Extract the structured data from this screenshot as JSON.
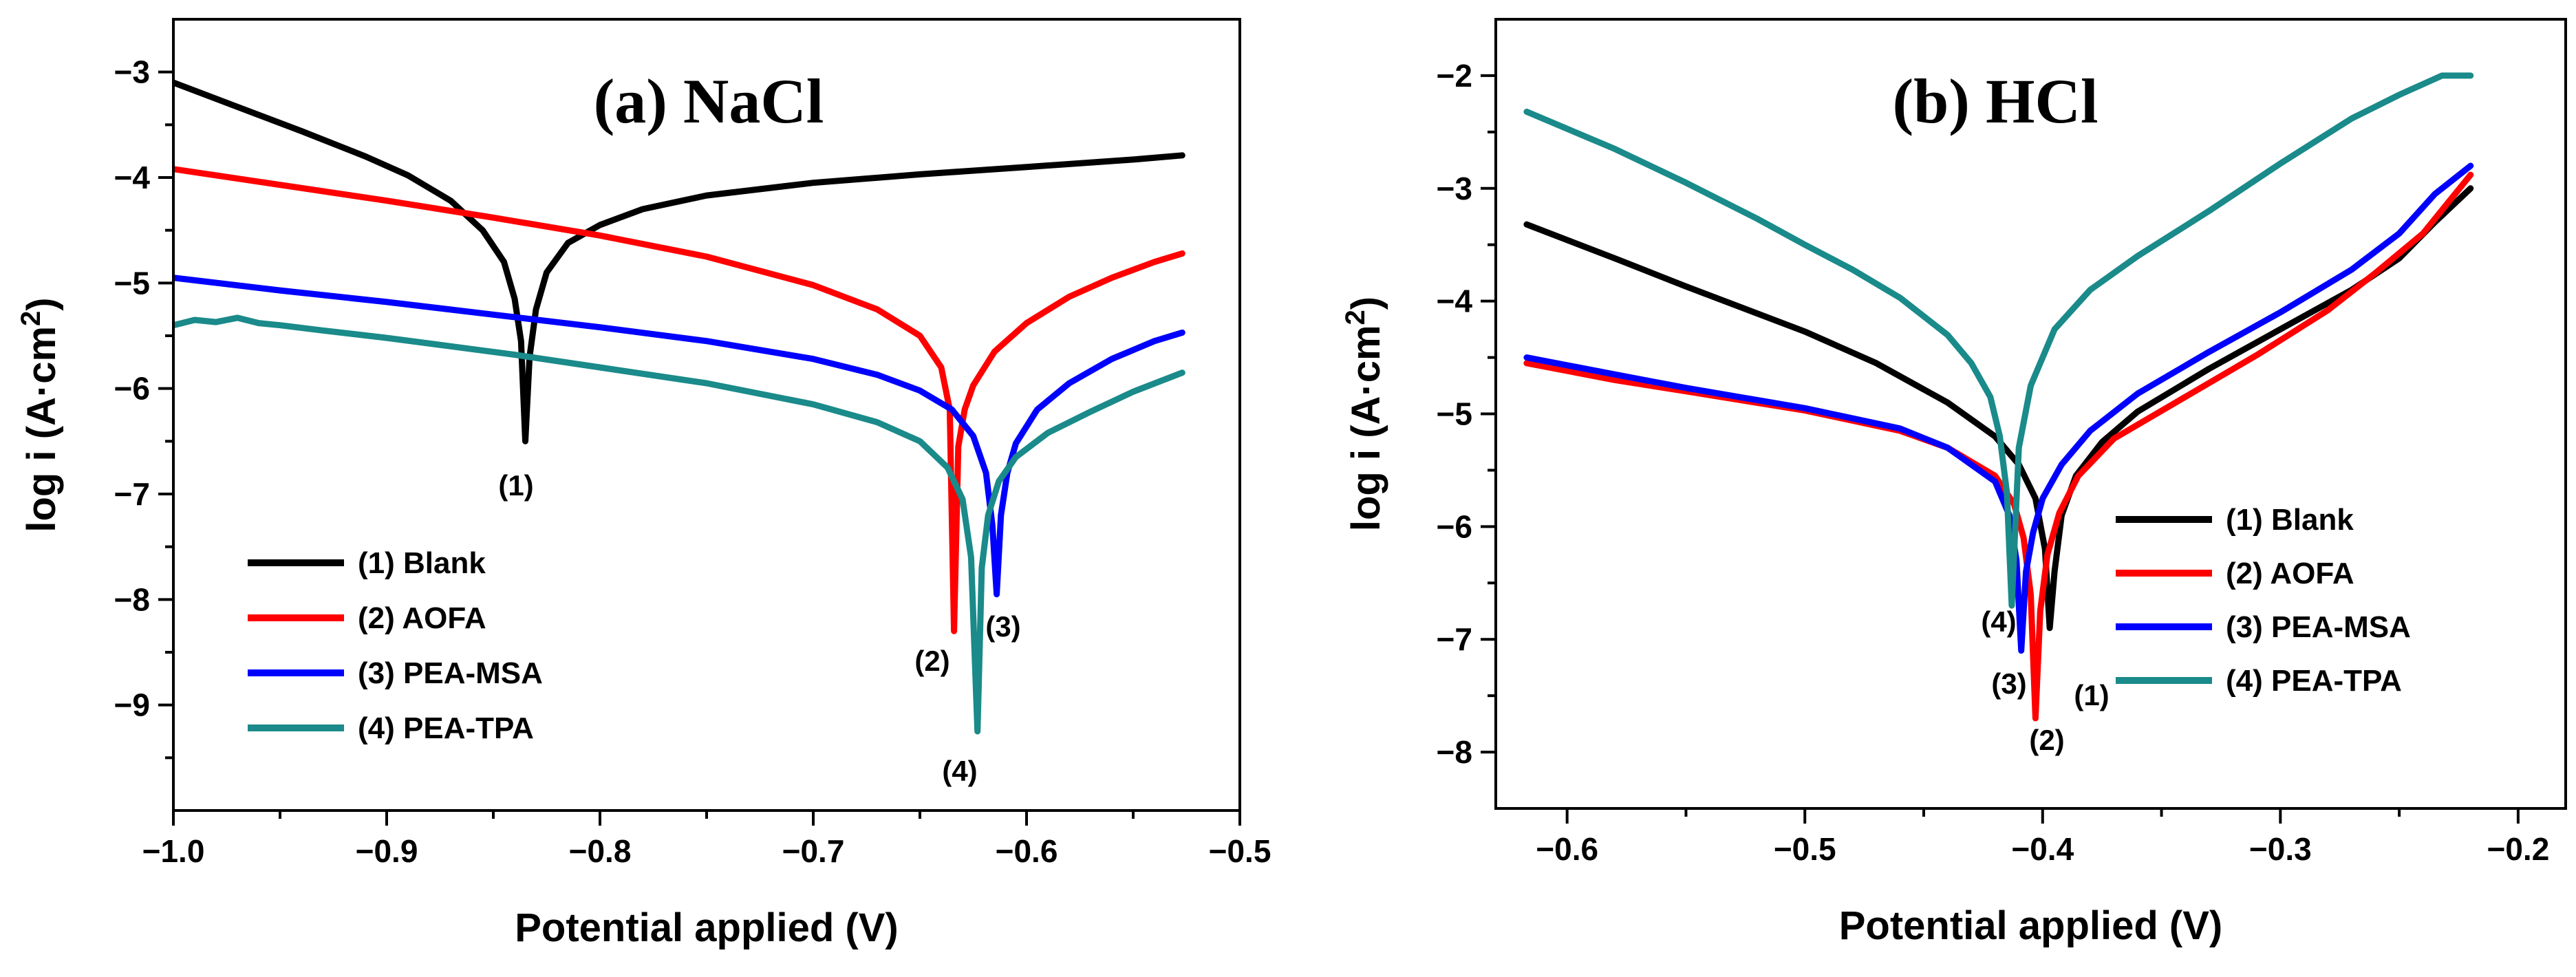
{
  "chart_data": [
    {
      "type": "line",
      "title": "(a)  NaCl",
      "xlabel": "Potential applied (V)",
      "ylabel": "log i (A·cm",
      "ylabel_sup": "2",
      "ylabel_close": ")",
      "xlim": [
        -1.0,
        -0.5
      ],
      "ylim": [
        -10.0,
        -2.5
      ],
      "xticks": [
        -1.0,
        -0.9,
        -0.8,
        -0.7,
        -0.6,
        -0.5
      ],
      "xtick_labels": [
        "−1.0",
        "−0.9",
        "−0.8",
        "−0.7",
        "−0.6",
        "−0.5"
      ],
      "yticks": [
        -9,
        -8,
        -7,
        -6,
        -5,
        -4,
        -3
      ],
      "ytick_labels": [
        "−9",
        "−8",
        "−7",
        "−6",
        "−5",
        "−4",
        "−3"
      ],
      "legend_position": "bottom-left",
      "series": [
        {
          "name": "(1) Blank",
          "color": "#000000",
          "annotation": "(1)",
          "x": [
            -1.0,
            -0.97,
            -0.94,
            -0.91,
            -0.89,
            -0.87,
            -0.855,
            -0.845,
            -0.84,
            -0.837,
            -0.835,
            -0.833,
            -0.83,
            -0.825,
            -0.815,
            -0.8,
            -0.78,
            -0.75,
            -0.7,
            -0.65,
            -0.6,
            -0.55,
            -0.527
          ],
          "y": [
            -3.1,
            -3.33,
            -3.56,
            -3.8,
            -3.98,
            -4.22,
            -4.5,
            -4.8,
            -5.15,
            -5.55,
            -6.5,
            -5.7,
            -5.25,
            -4.9,
            -4.62,
            -4.45,
            -4.3,
            -4.17,
            -4.05,
            -3.97,
            -3.9,
            -3.83,
            -3.79
          ]
        },
        {
          "name": "(2) AOFA",
          "color": "#ff0000",
          "annotation": "(2)",
          "x": [
            -1.0,
            -0.95,
            -0.9,
            -0.85,
            -0.8,
            -0.75,
            -0.7,
            -0.67,
            -0.65,
            -0.64,
            -0.636,
            -0.634,
            -0.632,
            -0.629,
            -0.625,
            -0.615,
            -0.6,
            -0.58,
            -0.56,
            -0.54,
            -0.527
          ],
          "y": [
            -3.92,
            -4.07,
            -4.22,
            -4.38,
            -4.55,
            -4.75,
            -5.02,
            -5.25,
            -5.5,
            -5.8,
            -6.2,
            -8.3,
            -6.55,
            -6.2,
            -5.97,
            -5.65,
            -5.38,
            -5.13,
            -4.95,
            -4.8,
            -4.72
          ]
        },
        {
          "name": "(3) PEA-MSA",
          "color": "#0000ff",
          "annotation": "(3)",
          "x": [
            -1.0,
            -0.95,
            -0.9,
            -0.85,
            -0.8,
            -0.75,
            -0.7,
            -0.67,
            -0.65,
            -0.635,
            -0.625,
            -0.619,
            -0.616,
            -0.614,
            -0.612,
            -0.609,
            -0.605,
            -0.595,
            -0.58,
            -0.56,
            -0.54,
            -0.527
          ],
          "y": [
            -4.95,
            -5.07,
            -5.18,
            -5.3,
            -5.42,
            -5.55,
            -5.72,
            -5.87,
            -6.02,
            -6.2,
            -6.45,
            -6.8,
            -7.3,
            -7.95,
            -7.2,
            -6.8,
            -6.52,
            -6.2,
            -5.95,
            -5.72,
            -5.55,
            -5.47
          ]
        },
        {
          "name": "(4) PEA-TPA",
          "color": "#1a8a8a",
          "annotation": "(4)",
          "x": [
            -1.0,
            -0.99,
            -0.98,
            -0.97,
            -0.96,
            -0.95,
            -0.93,
            -0.9,
            -0.87,
            -0.84,
            -0.8,
            -0.75,
            -0.7,
            -0.67,
            -0.65,
            -0.637,
            -0.63,
            -0.626,
            -0.623,
            -0.621,
            -0.618,
            -0.613,
            -0.605,
            -0.59,
            -0.57,
            -0.55,
            -0.527
          ],
          "y": [
            -5.4,
            -5.35,
            -5.37,
            -5.33,
            -5.38,
            -5.4,
            -5.45,
            -5.52,
            -5.6,
            -5.68,
            -5.8,
            -5.95,
            -6.15,
            -6.32,
            -6.5,
            -6.75,
            -7.05,
            -7.6,
            -9.25,
            -7.7,
            -7.2,
            -6.88,
            -6.65,
            -6.42,
            -6.22,
            -6.03,
            -5.85
          ]
        }
      ]
    },
    {
      "type": "line",
      "title": "(b)  HCl",
      "xlabel": "Potential applied (V)",
      "ylabel": "log i (A·cm",
      "ylabel_sup": "2",
      "ylabel_close": ")",
      "xlim": [
        -0.63,
        -0.18
      ],
      "ylim": [
        -8.5,
        -1.5
      ],
      "xticks": [
        -0.6,
        -0.5,
        -0.4,
        -0.3,
        -0.2
      ],
      "xtick_labels": [
        "−0.6",
        "−0.5",
        "−0.4",
        "−0.3",
        "−0.2"
      ],
      "yticks": [
        -8,
        -7,
        -6,
        -5,
        -4,
        -3,
        -2
      ],
      "ytick_labels": [
        "−8",
        "−7",
        "−6",
        "−5",
        "−4",
        "−3",
        "−2"
      ],
      "legend_position": "bottom-right",
      "series": [
        {
          "name": "(1) Blank",
          "color": "#000000",
          "annotation": "(1)",
          "x": [
            -0.617,
            -0.58,
            -0.55,
            -0.5,
            -0.47,
            -0.44,
            -0.42,
            -0.41,
            -0.403,
            -0.399,
            -0.397,
            -0.395,
            -0.392,
            -0.386,
            -0.375,
            -0.36,
            -0.33,
            -0.3,
            -0.27,
            -0.25,
            -0.235,
            -0.22
          ],
          "y": [
            -3.32,
            -3.62,
            -3.87,
            -4.27,
            -4.55,
            -4.9,
            -5.2,
            -5.45,
            -5.75,
            -6.2,
            -6.9,
            -6.4,
            -5.9,
            -5.55,
            -5.25,
            -4.98,
            -4.6,
            -4.25,
            -3.9,
            -3.62,
            -3.3,
            -3.0
          ]
        },
        {
          "name": "(2) AOFA",
          "color": "#ff0000",
          "annotation": "(2)",
          "x": [
            -0.617,
            -0.58,
            -0.55,
            -0.5,
            -0.46,
            -0.44,
            -0.42,
            -0.412,
            -0.408,
            -0.405,
            -0.403,
            -0.401,
            -0.398,
            -0.393,
            -0.385,
            -0.37,
            -0.34,
            -0.31,
            -0.28,
            -0.26,
            -0.24,
            -0.22
          ],
          "y": [
            -4.55,
            -4.7,
            -4.8,
            -4.97,
            -5.15,
            -5.3,
            -5.55,
            -5.8,
            -6.1,
            -6.6,
            -7.7,
            -6.75,
            -6.25,
            -5.88,
            -5.55,
            -5.22,
            -4.85,
            -4.48,
            -4.08,
            -3.75,
            -3.4,
            -2.88
          ]
        },
        {
          "name": "(3) PEA-MSA",
          "color": "#0000ff",
          "annotation": "(3)",
          "x": [
            -0.617,
            -0.58,
            -0.55,
            -0.5,
            -0.46,
            -0.44,
            -0.42,
            -0.414,
            -0.411,
            -0.409,
            -0.407,
            -0.404,
            -0.4,
            -0.392,
            -0.38,
            -0.36,
            -0.33,
            -0.3,
            -0.27,
            -0.25,
            -0.235,
            -0.22
          ],
          "y": [
            -4.5,
            -4.65,
            -4.77,
            -4.95,
            -5.13,
            -5.3,
            -5.6,
            -5.9,
            -6.3,
            -7.1,
            -6.4,
            -6.05,
            -5.75,
            -5.45,
            -5.15,
            -4.82,
            -4.45,
            -4.1,
            -3.72,
            -3.4,
            -3.05,
            -2.8
          ]
        },
        {
          "name": "(4) PEA-TPA",
          "color": "#1a8a8a",
          "annotation": "(4)",
          "x": [
            -0.617,
            -0.58,
            -0.55,
            -0.52,
            -0.5,
            -0.48,
            -0.46,
            -0.44,
            -0.43,
            -0.422,
            -0.418,
            -0.415,
            -0.413,
            -0.41,
            -0.405,
            -0.395,
            -0.38,
            -0.36,
            -0.33,
            -0.3,
            -0.27,
            -0.25,
            -0.232,
            -0.225,
            -0.22
          ],
          "y": [
            -2.32,
            -2.65,
            -2.95,
            -3.27,
            -3.5,
            -3.72,
            -3.97,
            -4.3,
            -4.55,
            -4.85,
            -5.2,
            -5.7,
            -6.7,
            -5.3,
            -4.75,
            -4.25,
            -3.9,
            -3.6,
            -3.2,
            -2.78,
            -2.38,
            -2.17,
            -2.0,
            -2.0,
            -2.0
          ]
        }
      ]
    }
  ]
}
